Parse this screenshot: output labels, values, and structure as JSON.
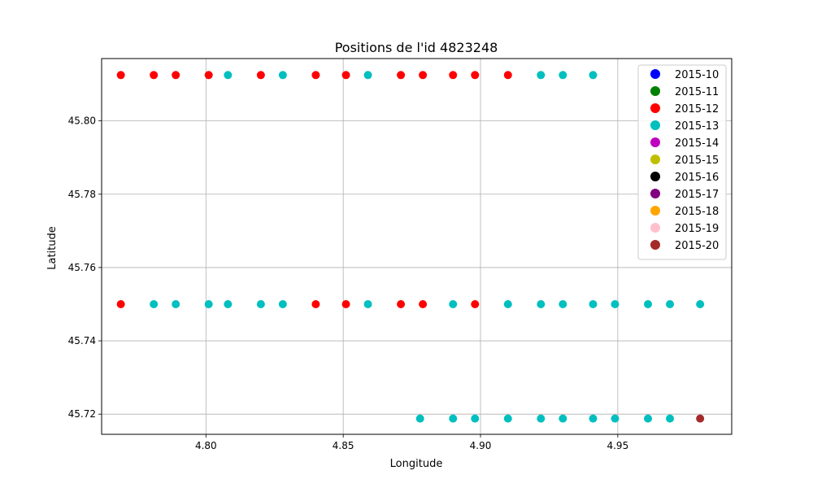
{
  "chart_data": {
    "type": "scatter",
    "title": "Positions de l'id 4823248",
    "xlabel": "Longitude",
    "ylabel": "Latitude",
    "xlim": [
      4.762,
      4.9915
    ],
    "ylim": [
      45.7145,
      45.817
    ],
    "xticks": [
      4.8,
      4.85,
      4.9,
      4.95
    ],
    "xtick_labels": [
      "4.80",
      "4.85",
      "4.90",
      "4.95"
    ],
    "yticks": [
      45.72,
      45.74,
      45.76,
      45.78,
      45.8
    ],
    "ytick_labels": [
      "45.72",
      "45.74",
      "45.76",
      "45.78",
      "45.80"
    ],
    "grid": true,
    "legend_position": "top-right",
    "legend": [
      {
        "label": "2015-10",
        "color": "#0000ff"
      },
      {
        "label": "2015-11",
        "color": "#008000"
      },
      {
        "label": "2015-12",
        "color": "#ff0000"
      },
      {
        "label": "2015-13",
        "color": "#00bfbf"
      },
      {
        "label": "2015-14",
        "color": "#bf00bf"
      },
      {
        "label": "2015-15",
        "color": "#bfbf00"
      },
      {
        "label": "2015-16",
        "color": "#000000"
      },
      {
        "label": "2015-17",
        "color": "#800080"
      },
      {
        "label": "2015-18",
        "color": "#ffa500"
      },
      {
        "label": "2015-19",
        "color": "#ffc0cb"
      },
      {
        "label": "2015-20",
        "color": "#a52a2a"
      }
    ],
    "series": [
      {
        "color": "#00bfbf",
        "points": [
          [
            4.808,
            45.8125
          ],
          [
            4.828,
            45.8125
          ],
          [
            4.859,
            45.8125
          ],
          [
            4.922,
            45.8125
          ],
          [
            4.93,
            45.8125
          ],
          [
            4.941,
            45.8125
          ],
          [
            4.781,
            45.75
          ],
          [
            4.789,
            45.75
          ],
          [
            4.801,
            45.75
          ],
          [
            4.808,
            45.75
          ],
          [
            4.82,
            45.75
          ],
          [
            4.828,
            45.75
          ],
          [
            4.859,
            45.75
          ],
          [
            4.89,
            45.75
          ],
          [
            4.91,
            45.75
          ],
          [
            4.922,
            45.75
          ],
          [
            4.93,
            45.75
          ],
          [
            4.941,
            45.75
          ],
          [
            4.949,
            45.75
          ],
          [
            4.961,
            45.75
          ],
          [
            4.969,
            45.75
          ],
          [
            4.98,
            45.75
          ],
          [
            4.878,
            45.7188
          ],
          [
            4.89,
            45.7188
          ],
          [
            4.898,
            45.7188
          ],
          [
            4.91,
            45.7188
          ],
          [
            4.922,
            45.7188
          ],
          [
            4.93,
            45.7188
          ],
          [
            4.941,
            45.7188
          ],
          [
            4.949,
            45.7188
          ],
          [
            4.961,
            45.7188
          ],
          [
            4.969,
            45.7188
          ]
        ]
      },
      {
        "color": "#ff0000",
        "points": [
          [
            4.769,
            45.8125
          ],
          [
            4.781,
            45.8125
          ],
          [
            4.789,
            45.8125
          ],
          [
            4.801,
            45.8125
          ],
          [
            4.82,
            45.8125
          ],
          [
            4.84,
            45.8125
          ],
          [
            4.851,
            45.8125
          ],
          [
            4.871,
            45.8125
          ],
          [
            4.879,
            45.8125
          ],
          [
            4.89,
            45.8125
          ],
          [
            4.898,
            45.8125
          ],
          [
            4.91,
            45.8125
          ],
          [
            4.769,
            45.75
          ],
          [
            4.84,
            45.75
          ],
          [
            4.851,
            45.75
          ],
          [
            4.871,
            45.75
          ],
          [
            4.879,
            45.75
          ],
          [
            4.898,
            45.75
          ]
        ]
      },
      {
        "color": "#a52a2a",
        "points": [
          [
            4.98,
            45.7188
          ]
        ]
      }
    ]
  }
}
